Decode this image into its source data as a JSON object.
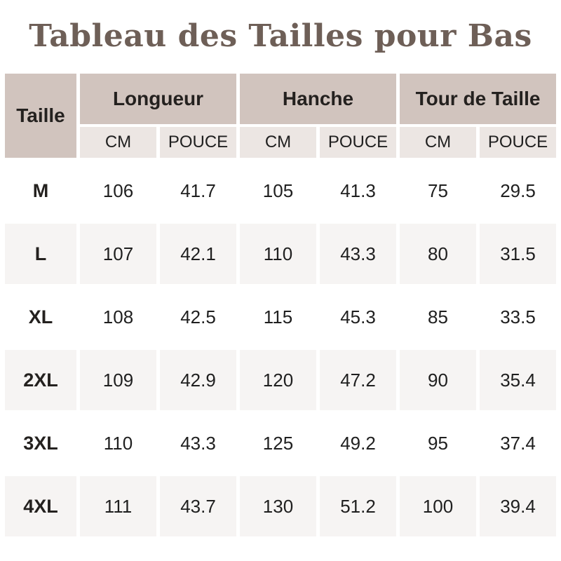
{
  "title": "Tableau des Tailles pour Bas",
  "colors": {
    "title_color": "#6e5f57",
    "header_bg": "#d1c4be",
    "subheader_bg": "#ece6e3",
    "row_alt_bg": "#f6f4f3",
    "table_text": "#1f1f1f"
  },
  "table": {
    "corner_header": "Taille",
    "group_headers": [
      "Longueur",
      "Hanche",
      "Tour de Taille"
    ],
    "unit_headers": [
      "CM",
      "POUCE",
      "CM",
      "POUCE",
      "CM",
      "POUCE"
    ],
    "rows": [
      {
        "size": "M",
        "values": [
          "106",
          "41.7",
          "105",
          "41.3",
          "75",
          "29.5"
        ]
      },
      {
        "size": "L",
        "values": [
          "107",
          "42.1",
          "110",
          "43.3",
          "80",
          "31.5"
        ]
      },
      {
        "size": "XL",
        "values": [
          "108",
          "42.5",
          "115",
          "45.3",
          "85",
          "33.5"
        ]
      },
      {
        "size": "2XL",
        "values": [
          "109",
          "42.9",
          "120",
          "47.2",
          "90",
          "35.4"
        ]
      },
      {
        "size": "3XL",
        "values": [
          "110",
          "43.3",
          "125",
          "49.2",
          "95",
          "37.4"
        ]
      },
      {
        "size": "4XL",
        "values": [
          "111",
          "43.7",
          "130",
          "51.2",
          "100",
          "39.4"
        ]
      }
    ]
  },
  "chart_data": {
    "type": "table",
    "title": "Tableau des Tailles pour Bas",
    "columns": [
      "Taille",
      "Longueur CM",
      "Longueur POUCE",
      "Hanche CM",
      "Hanche POUCE",
      "Tour de Taille CM",
      "Tour de Taille POUCE"
    ],
    "rows": [
      [
        "M",
        106,
        41.7,
        105,
        41.3,
        75,
        29.5
      ],
      [
        "L",
        107,
        42.1,
        110,
        43.3,
        80,
        31.5
      ],
      [
        "XL",
        108,
        42.5,
        115,
        45.3,
        85,
        33.5
      ],
      [
        "2XL",
        109,
        42.9,
        120,
        47.2,
        90,
        35.4
      ],
      [
        "3XL",
        110,
        43.3,
        125,
        49.2,
        95,
        37.4
      ],
      [
        "4XL",
        111,
        43.7,
        130,
        51.2,
        100,
        39.4
      ]
    ],
    "layout": {
      "zebra_striping": true,
      "grouped_column_headers": true,
      "units_row": [
        "CM",
        "POUCE"
      ]
    }
  }
}
